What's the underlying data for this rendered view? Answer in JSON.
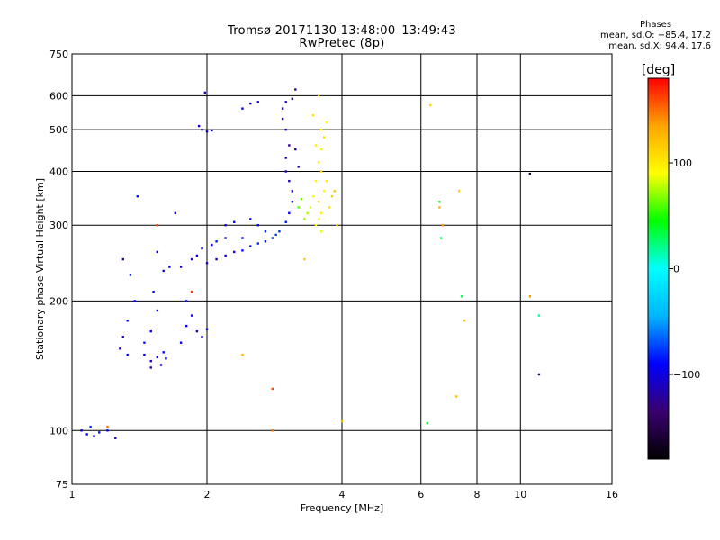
{
  "header": {
    "title_line1": "Tromsø 20171130 13:48:00–13:49:43",
    "title_line2": "RwPretec (8p)",
    "stats_heading": "Phases",
    "stats_o": "mean, sd,O: −85.4, 17.2",
    "stats_x": "mean, sd,X:  94.4, 17.6"
  },
  "colorbar": {
    "label": "[deg]",
    "ticks": [
      "100",
      "0",
      "−100"
    ],
    "tick_values": [
      100,
      0,
      -100
    ],
    "range": [
      -180,
      180
    ],
    "colors": [
      "#000000",
      "#3a0070",
      "#0000ff",
      "#00b4ff",
      "#00ffff",
      "#00ff00",
      "#ffff00",
      "#ffa500",
      "#ff0000"
    ]
  },
  "chart_data": {
    "type": "scatter",
    "xlabel": "Frequency [MHz]",
    "ylabel": "Stationary phase Virtual Height [km]",
    "xscale": "log",
    "yscale": "log",
    "xlim": [
      1,
      16
    ],
    "ylim": [
      75,
      750
    ],
    "x_ticks": [
      1,
      2,
      4,
      6,
      8,
      10,
      16
    ],
    "x_tick_labels": [
      "1",
      "2",
      "4",
      "6",
      "8",
      "10",
      "16"
    ],
    "y_ticks": [
      75,
      100,
      200,
      300,
      400,
      500,
      600,
      750
    ],
    "y_tick_labels": [
      "75",
      "100",
      "200",
      "300",
      "400",
      "500",
      "600",
      "750"
    ],
    "grid": true,
    "series": [
      {
        "points": [
          [
            1.05,
            100,
            -95
          ],
          [
            1.08,
            98,
            -90
          ],
          [
            1.12,
            97,
            -100
          ],
          [
            1.15,
            99,
            -85
          ],
          [
            1.2,
            100,
            -95
          ],
          [
            1.25,
            96,
            -110
          ],
          [
            1.1,
            102,
            -80
          ],
          [
            1.45,
            150,
            -100
          ],
          [
            1.5,
            145,
            -110
          ],
          [
            1.55,
            148,
            -95
          ],
          [
            1.6,
            152,
            -90
          ],
          [
            1.5,
            140,
            -120
          ],
          [
            1.58,
            142,
            -105
          ],
          [
            1.62,
            147,
            -100
          ],
          [
            1.45,
            160,
            -85
          ],
          [
            1.5,
            170,
            -95
          ],
          [
            1.55,
            190,
            -100
          ],
          [
            1.52,
            210,
            -90
          ],
          [
            1.6,
            235,
            -110
          ],
          [
            1.65,
            240,
            -95
          ],
          [
            1.55,
            260,
            -100
          ],
          [
            1.75,
            160,
            -90
          ],
          [
            1.8,
            175,
            -95
          ],
          [
            1.85,
            185,
            -100
          ],
          [
            1.8,
            200,
            -85
          ],
          [
            1.9,
            170,
            -110
          ],
          [
            1.95,
            165,
            -100
          ],
          [
            2.0,
            172,
            -95
          ],
          [
            1.75,
            240,
            -100
          ],
          [
            1.85,
            250,
            -95
          ],
          [
            1.9,
            255,
            -90
          ],
          [
            1.95,
            265,
            -100
          ],
          [
            2.05,
            270,
            -95
          ],
          [
            2.1,
            275,
            -85
          ],
          [
            2.2,
            280,
            -100
          ],
          [
            2.0,
            245,
            -110
          ],
          [
            2.1,
            250,
            -105
          ],
          [
            2.2,
            255,
            -100
          ],
          [
            2.3,
            260,
            -95
          ],
          [
            2.4,
            262,
            -90
          ],
          [
            2.5,
            268,
            -85
          ],
          [
            2.6,
            272,
            -80
          ],
          [
            2.7,
            275,
            -85
          ],
          [
            2.8,
            280,
            -80
          ],
          [
            2.9,
            290,
            -80
          ],
          [
            3.0,
            305,
            -85
          ],
          [
            3.05,
            320,
            -90
          ],
          [
            3.1,
            340,
            -95
          ],
          [
            3.1,
            360,
            -100
          ],
          [
            3.05,
            380,
            -110
          ],
          [
            3.0,
            400,
            -115
          ],
          [
            3.0,
            430,
            -120
          ],
          [
            3.05,
            460,
            -125
          ],
          [
            3.0,
            500,
            -120
          ],
          [
            2.95,
            530,
            -110
          ],
          [
            2.95,
            560,
            -105
          ],
          [
            3.0,
            580,
            -110
          ],
          [
            3.15,
            620,
            -120
          ],
          [
            3.1,
            590,
            -125
          ],
          [
            3.15,
            450,
            -115
          ],
          [
            3.2,
            410,
            -110
          ],
          [
            2.2,
            300,
            -95
          ],
          [
            2.3,
            305,
            -90
          ],
          [
            2.5,
            310,
            -85
          ],
          [
            2.7,
            290,
            -80
          ],
          [
            2.6,
            300,
            -90
          ],
          [
            2.4,
            280,
            -95
          ],
          [
            2.85,
            285,
            -75
          ],
          [
            1.95,
            500,
            -110
          ],
          [
            2.0,
            495,
            -100
          ],
          [
            1.92,
            510,
            -105
          ],
          [
            2.05,
            498,
            -110
          ],
          [
            1.98,
            610,
            -120
          ],
          [
            2.4,
            560,
            -100
          ],
          [
            2.5,
            575,
            -95
          ],
          [
            2.6,
            580,
            -105
          ],
          [
            1.7,
            320,
            -100
          ],
          [
            1.4,
            350,
            -90
          ],
          [
            1.35,
            230,
            -95
          ],
          [
            1.3,
            250,
            -110
          ],
          [
            1.38,
            200,
            -90
          ],
          [
            1.33,
            180,
            -95
          ],
          [
            1.3,
            165,
            -100
          ],
          [
            1.28,
            155,
            -105
          ],
          [
            1.33,
            150,
            -100
          ],
          [
            3.5,
            300,
            90
          ],
          [
            3.55,
            310,
            95
          ],
          [
            3.6,
            320,
            100
          ],
          [
            3.55,
            340,
            105
          ],
          [
            3.65,
            360,
            95
          ],
          [
            3.7,
            380,
            100
          ],
          [
            3.6,
            400,
            110
          ],
          [
            3.55,
            420,
            100
          ],
          [
            3.6,
            450,
            95
          ],
          [
            3.65,
            480,
            105
          ],
          [
            3.6,
            500,
            100
          ],
          [
            3.7,
            520,
            95
          ],
          [
            3.4,
            330,
            80
          ],
          [
            3.45,
            350,
            90
          ],
          [
            3.5,
            380,
            95
          ],
          [
            3.3,
            310,
            70
          ],
          [
            3.35,
            320,
            75
          ],
          [
            3.2,
            330,
            60
          ],
          [
            3.25,
            345,
            65
          ],
          [
            3.75,
            330,
            105
          ],
          [
            3.8,
            350,
            115
          ],
          [
            3.6,
            290,
            85
          ],
          [
            3.55,
            600,
            110
          ],
          [
            3.3,
            250,
            120
          ],
          [
            3.9,
            300,
            110
          ],
          [
            3.85,
            360,
            120
          ],
          [
            3.5,
            460,
            100
          ],
          [
            3.45,
            540,
            105
          ],
          [
            6.3,
            570,
            110
          ],
          [
            6.6,
            330,
            130
          ],
          [
            6.6,
            340,
            40
          ],
          [
            6.7,
            300,
            140
          ],
          [
            6.65,
            280,
            30
          ],
          [
            7.3,
            360,
            115
          ],
          [
            7.5,
            180,
            120
          ],
          [
            7.4,
            205,
            30
          ],
          [
            7.2,
            120,
            120
          ],
          [
            10.5,
            395,
            -160
          ],
          [
            10.5,
            205,
            140
          ],
          [
            11.0,
            135,
            -150
          ],
          [
            11.0,
            185,
            20
          ],
          [
            6.2,
            104,
            40
          ],
          [
            4.0,
            105,
            130
          ],
          [
            2.8,
            100,
            150
          ],
          [
            2.8,
            125,
            160
          ],
          [
            1.55,
            300,
            160
          ],
          [
            1.2,
            102,
            150
          ],
          [
            2.4,
            150,
            130
          ],
          [
            1.85,
            210,
            170
          ]
        ]
      }
    ]
  }
}
